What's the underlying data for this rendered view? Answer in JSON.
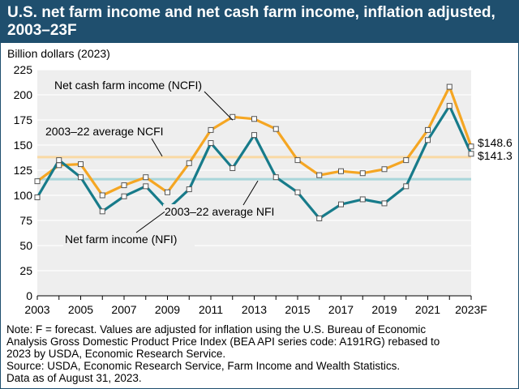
{
  "title": "U.S. net farm income and net cash farm income, inflation adjusted, 2003–23F",
  "colors": {
    "header_bg": "#1f4f6e",
    "ncfi_line": "#f5a623",
    "nfi_line": "#177b8a",
    "ncfi_avg_line": "#f9d9a4",
    "nfi_avg_line": "#a9d6da",
    "plot_bg": "#eeeeee",
    "marker_fill": "#ffffff",
    "marker_stroke": "#555555"
  },
  "chart_data": {
    "type": "line",
    "ylabel": "Billion dollars (2023)",
    "ylim": [
      0,
      225
    ],
    "yticks": [
      0,
      25,
      50,
      75,
      100,
      125,
      150,
      175,
      200,
      225
    ],
    "x": [
      "2003",
      "2004",
      "2005",
      "2006",
      "2007",
      "2008",
      "2009",
      "2010",
      "2011",
      "2012",
      "2013",
      "2014",
      "2015",
      "2016",
      "2017",
      "2018",
      "2019",
      "2020",
      "2021",
      "2022",
      "2023F"
    ],
    "xtick_labels": [
      "2003",
      "2005",
      "2007",
      "2009",
      "2011",
      "2013",
      "2015",
      "2017",
      "2019",
      "2021",
      "2023F"
    ],
    "grid": "horizontal",
    "series": [
      {
        "name": "Net cash farm income (NCFI)",
        "color": "#f5a623",
        "values": [
          114,
          130,
          131,
          100,
          110,
          118,
          103,
          132,
          165,
          178,
          176,
          166,
          135,
          120,
          124,
          122,
          126,
          135,
          165,
          208,
          148.6
        ]
      },
      {
        "name": "Net farm income (NFI)",
        "color": "#177b8a",
        "values": [
          98,
          135,
          118,
          84,
          99,
          109,
          86,
          106,
          152,
          127,
          160,
          118,
          103,
          77,
          91,
          96,
          92,
          109,
          155,
          189,
          141.3
        ]
      }
    ],
    "reference_lines": [
      {
        "name": "2003–22 average NCFI",
        "value": 138,
        "color": "#f9d9a4"
      },
      {
        "name": "2003–22 average NFI",
        "value": 116,
        "color": "#a9d6da"
      }
    ],
    "annotations": {
      "ncfi_label": "Net cash farm income (NCFI)",
      "nfi_label": "Net farm income (NFI)",
      "ncfi_avg_label": "2003–22 average NCFI",
      "nfi_avg_label": "2003–22 average NFI",
      "ncfi_end_value": "$148.6",
      "nfi_end_value": "$141.3"
    }
  },
  "notes": [
    "Note: F = forecast. Values are adjusted for inflation using the U.S. Bureau of Economic",
    "Analysis Gross Domestic Product Price Index (BEA API series code: A191RG) rebased to",
    "2023 by USDA, Economic Research Service.",
    "Source: USDA, Economic Research Service, Farm Income and Wealth Statistics.",
    "Data as of August 31, 2023."
  ]
}
